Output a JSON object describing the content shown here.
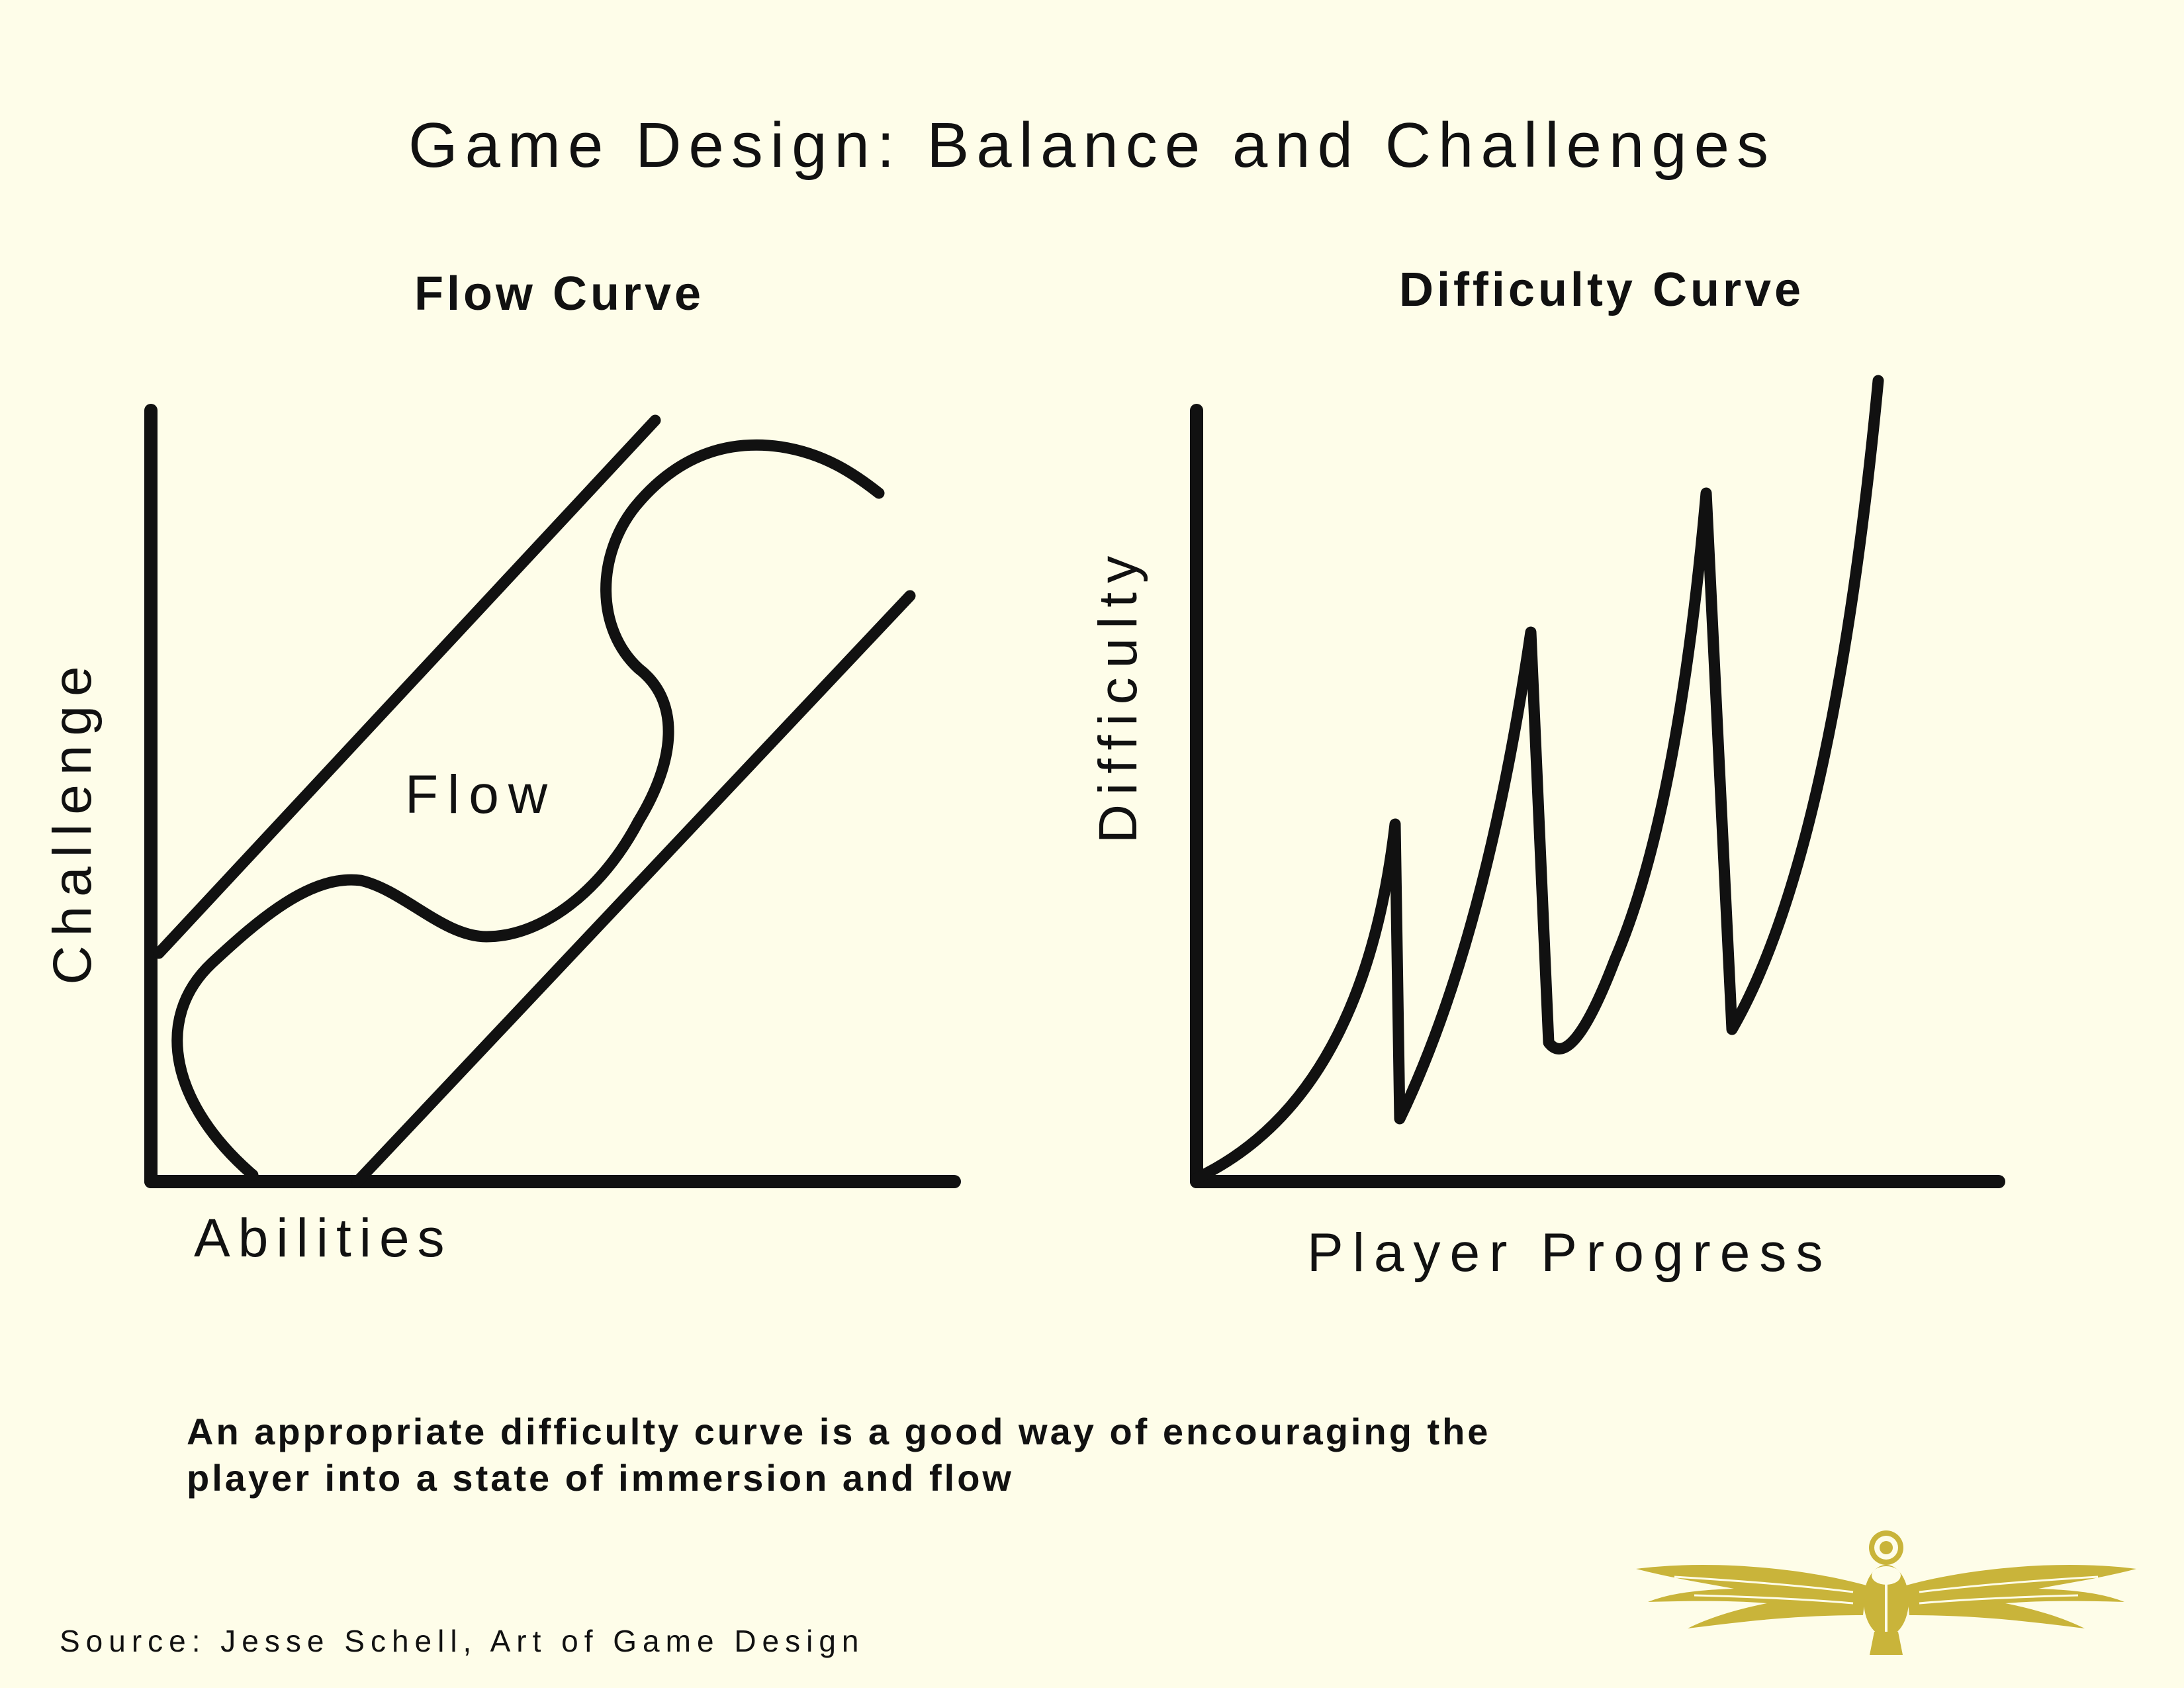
{
  "title": "Game Design: Balance and Challenges",
  "flow_chart": {
    "title": "Flow Curve",
    "x_axis_label": "Abilities",
    "y_axis_label": "Challenge",
    "region_label": "Flow"
  },
  "difficulty_chart": {
    "title": "Difficulty Curve",
    "x_axis_label": "Player Progress",
    "y_axis_label": "Difficulty"
  },
  "caption": {
    "line1": "An appropriate difficulty curve is a good way of encouraging the",
    "line2": "player into a state of immersion and flow"
  },
  "source": "Source: Jesse Schell, Art of Game Design",
  "emblem_icon": "winged-scarab-icon",
  "colors": {
    "background": "#fefde9",
    "ink": "#111111",
    "emblem": "#c9b43a"
  }
}
